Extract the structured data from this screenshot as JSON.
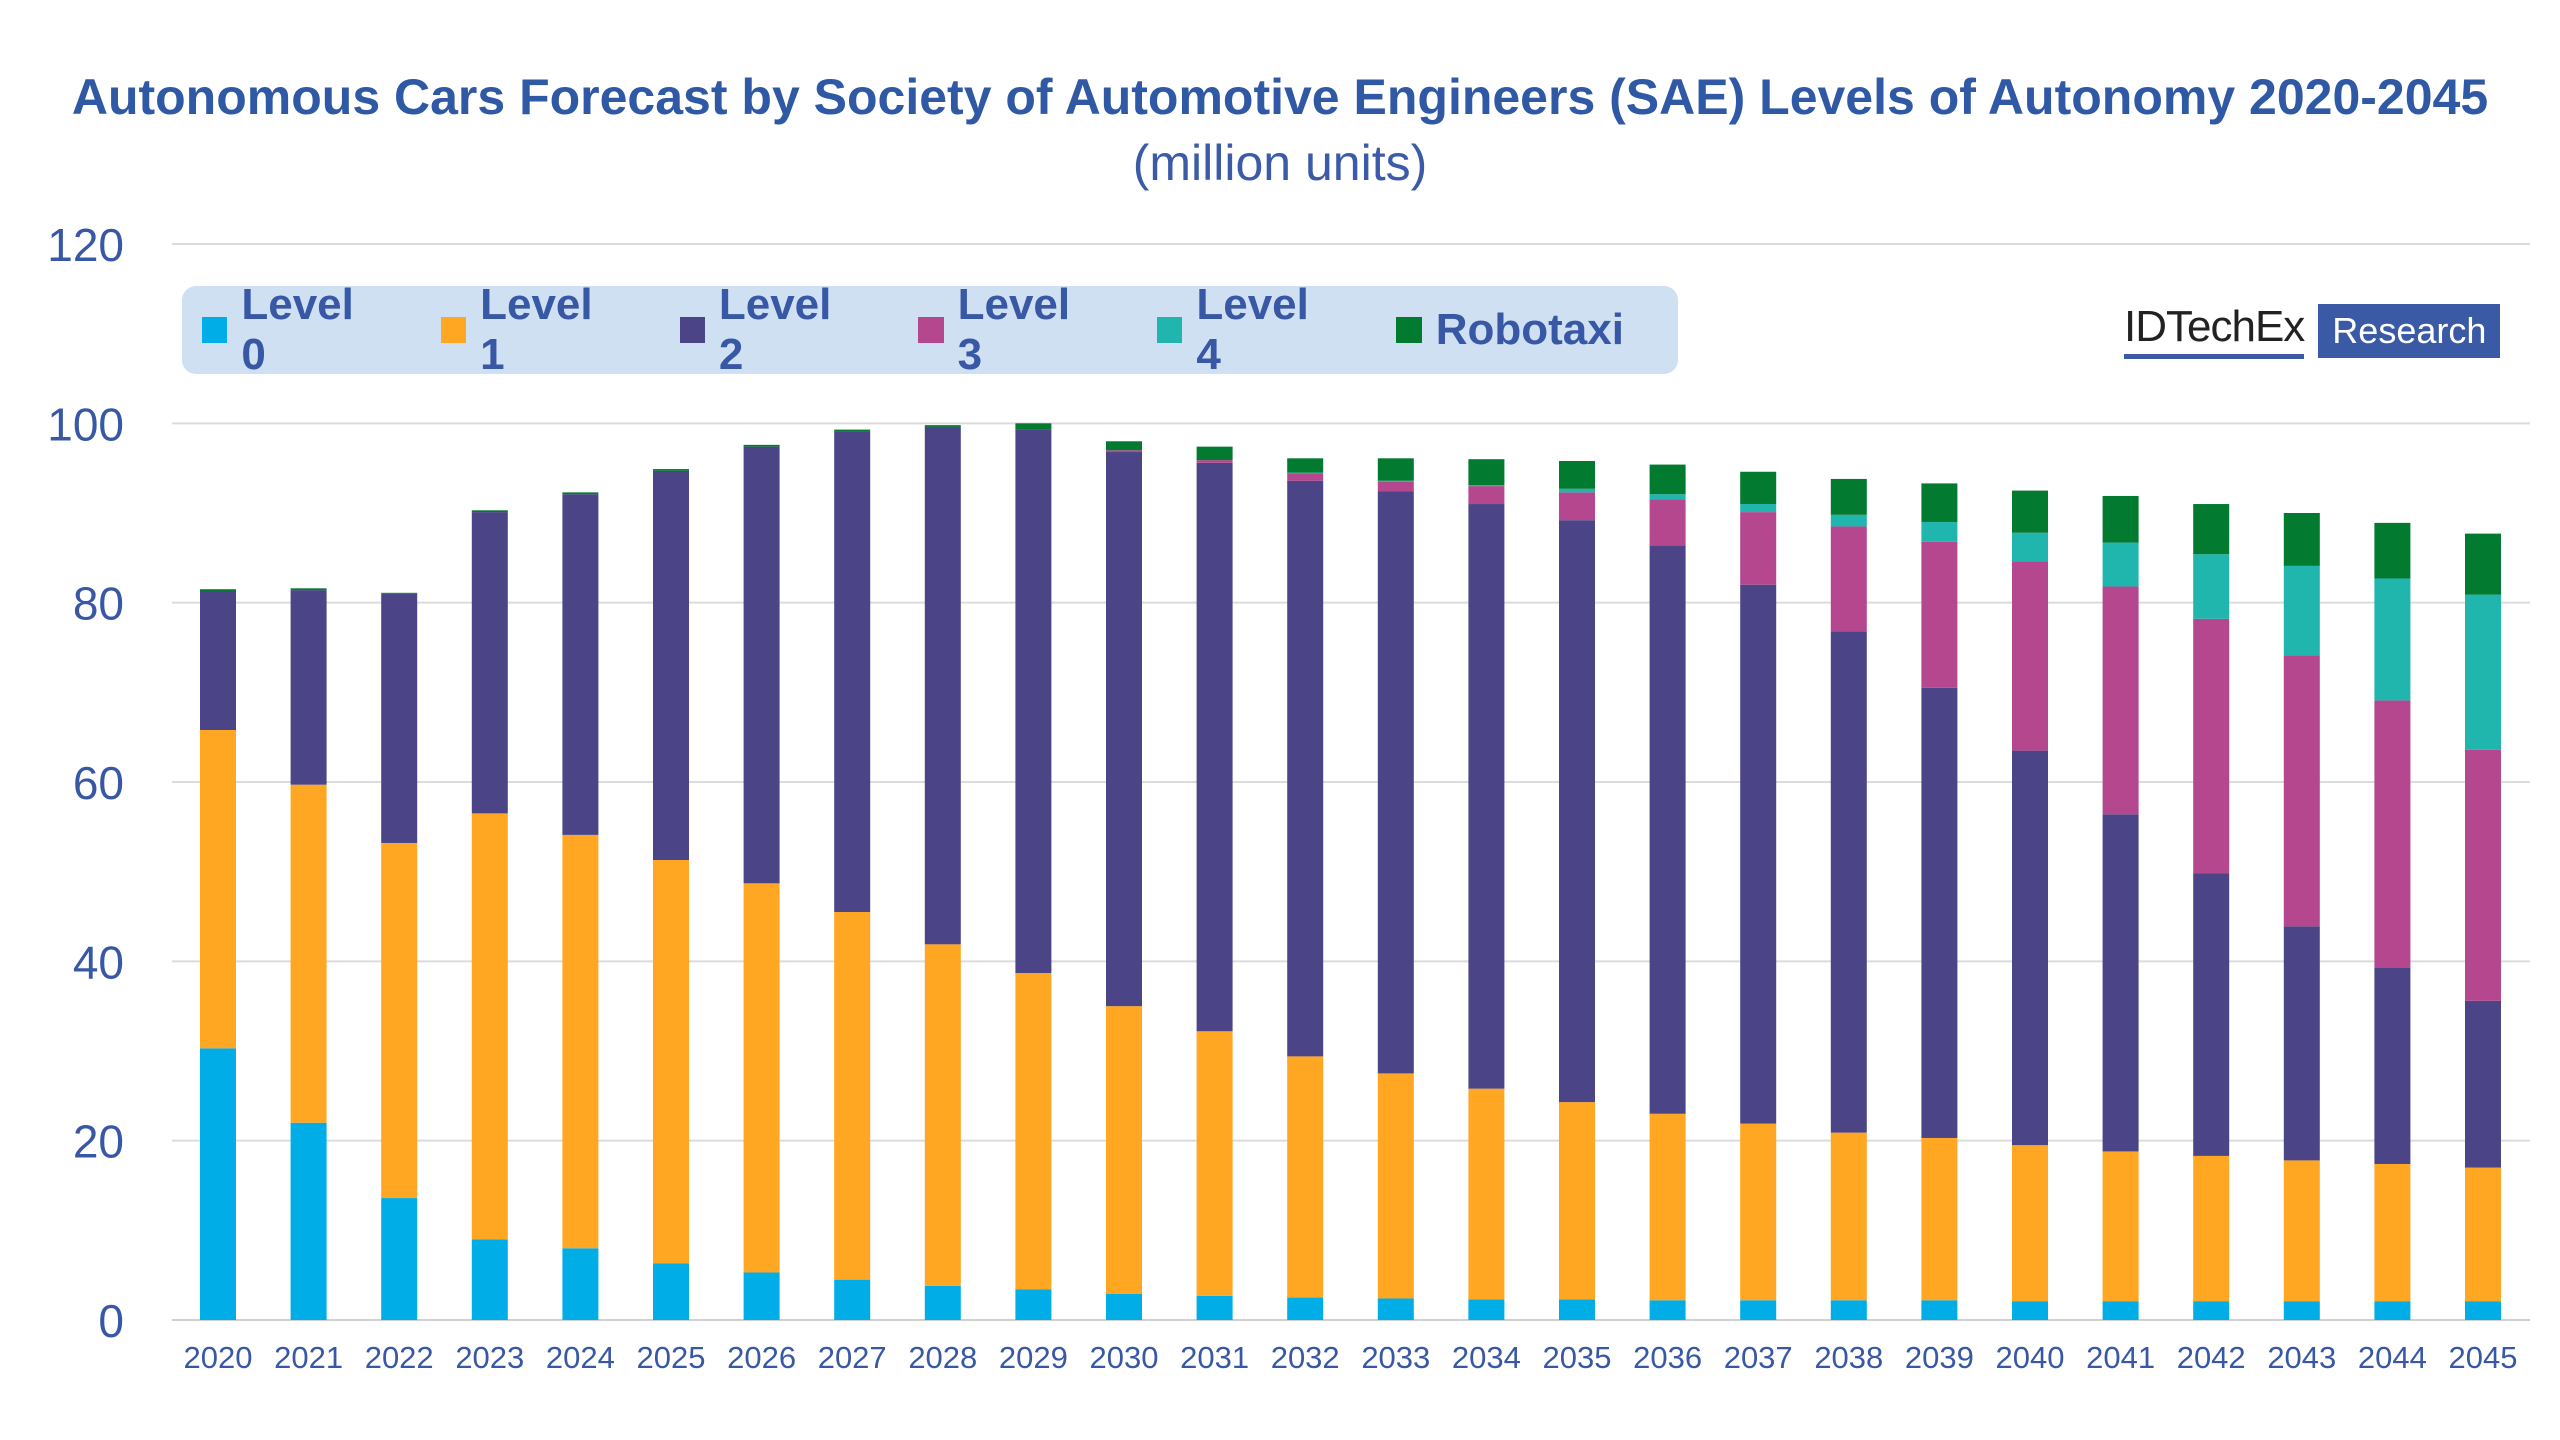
{
  "chart_data": {
    "type": "bar",
    "stacked": true,
    "title": "Autonomous Cars Forecast by Society of Automotive Engineers (SAE) Levels of Autonomy 2020-2045",
    "subtitle": "(million units)",
    "xlabel": "",
    "ylabel": "",
    "ylim": [
      0,
      120
    ],
    "yticks": [
      0,
      20,
      40,
      60,
      80,
      100,
      120
    ],
    "grid": true,
    "legend_position": "top-left",
    "categories": [
      "2020",
      "2021",
      "2022",
      "2023",
      "2024",
      "2025",
      "2026",
      "2027",
      "2028",
      "2029",
      "2030",
      "2031",
      "2032",
      "2033",
      "2034",
      "2035",
      "2036",
      "2037",
      "2038",
      "2039",
      "2040",
      "2041",
      "2042",
      "2043",
      "2044",
      "2045"
    ],
    "series": [
      {
        "name": "Level 0",
        "color": "#00ade6",
        "values": [
          30.3,
          22.0,
          13.6,
          9.0,
          8.0,
          6.3,
          5.3,
          4.5,
          3.8,
          3.4,
          2.9,
          2.7,
          2.5,
          2.4,
          2.3,
          2.3,
          2.2,
          2.2,
          2.2,
          2.2,
          2.1,
          2.1,
          2.1,
          2.1,
          2.1,
          2.1
        ]
      },
      {
        "name": "Level 1",
        "color": "#ffa623",
        "values": [
          35.5,
          37.7,
          39.6,
          47.5,
          46.1,
          45.0,
          43.4,
          41.0,
          38.1,
          35.3,
          32.1,
          29.5,
          26.9,
          25.1,
          23.5,
          22.0,
          20.8,
          19.7,
          18.7,
          18.1,
          17.4,
          16.7,
          16.2,
          15.7,
          15.3,
          14.9
        ]
      },
      {
        "name": "Level 2",
        "color": "#4b4587",
        "values": [
          15.5,
          21.7,
          27.8,
          33.6,
          38.0,
          43.4,
          48.7,
          53.6,
          57.7,
          60.6,
          61.8,
          63.4,
          64.2,
          64.9,
          65.2,
          64.9,
          63.4,
          60.1,
          55.9,
          50.2,
          44.0,
          37.6,
          31.5,
          26.1,
          21.9,
          18.6
        ]
      },
      {
        "name": "Level 3",
        "color": "#b5478f",
        "values": [
          0,
          0,
          0,
          0,
          0,
          0,
          0,
          0,
          0,
          0,
          0.2,
          0.3,
          0.8,
          1.1,
          2.0,
          3.1,
          5.1,
          8.1,
          11.7,
          16.3,
          21.1,
          25.4,
          28.4,
          30.2,
          29.8,
          28.0
        ]
      },
      {
        "name": "Level 4",
        "color": "#20b5ad",
        "values": [
          0,
          0,
          0,
          0,
          0,
          0,
          0,
          0,
          0,
          0,
          0,
          0,
          0.1,
          0.1,
          0.1,
          0.4,
          0.6,
          0.9,
          1.3,
          2.2,
          3.2,
          4.9,
          7.2,
          10.0,
          13.6,
          17.3
        ]
      },
      {
        "name": "Robotaxi",
        "color": "#027a2f",
        "values": [
          0.2,
          0.2,
          0.1,
          0.2,
          0.2,
          0.2,
          0.2,
          0.2,
          0.2,
          0.7,
          1.0,
          1.5,
          1.6,
          2.5,
          2.9,
          3.1,
          3.3,
          3.6,
          4.0,
          4.3,
          4.7,
          5.2,
          5.6,
          5.9,
          6.2,
          6.8
        ]
      }
    ]
  },
  "logo": {
    "name": "IDTechEx",
    "tag": "Research"
  }
}
